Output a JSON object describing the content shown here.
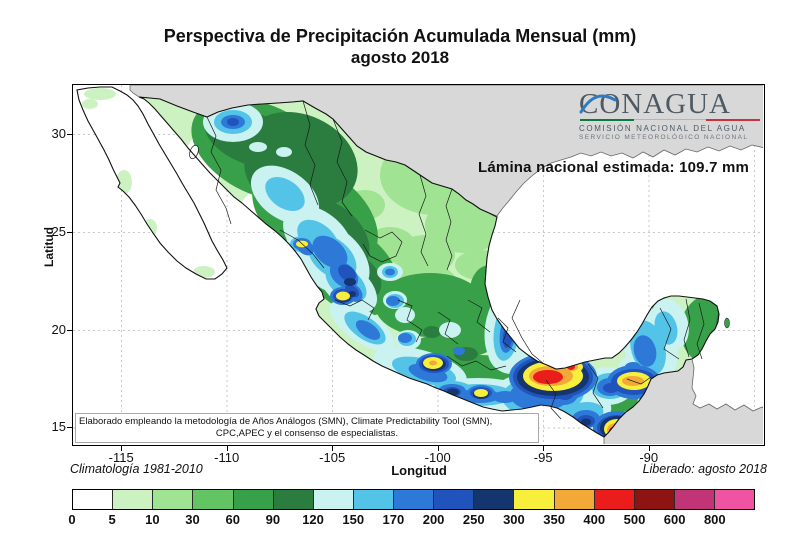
{
  "title": {
    "line1": "Perspectiva de Precipitación Acumulada Mensual (mm)",
    "line2": "agosto 2018"
  },
  "logo": {
    "name": "CONAGUA",
    "sub1": "COMISIÓN NACIONAL DEL AGUA",
    "sub2": "SERVICIO METEOROLÓGICO NACIONAL",
    "bar_colors": [
      "#0b7a40",
      "#b0b6ba",
      "#c8323c"
    ],
    "swoosh_color": "#2e7bc4"
  },
  "map": {
    "annotation": "Lámina nacional estimada: 109.7 mm",
    "methodology_line1": "Elaborado empleando la metodología de Años Análogos (SMN), Climate Predictability Tool (SMN),",
    "methodology_line2": "CPC,APEC y el consenso de especialistas."
  },
  "axes": {
    "x_label": "Longitud",
    "y_label": "Latitud",
    "x_ticks": [
      -115,
      -110,
      -105,
      -100,
      -95,
      -90
    ],
    "y_ticks": [
      30,
      25,
      20,
      15
    ]
  },
  "footer": {
    "left": "Climatología 1981-2010",
    "right": "Liberado: agosto 2018"
  },
  "colorbar": {
    "values": [
      0,
      5,
      10,
      30,
      60,
      90,
      120,
      150,
      170,
      200,
      250,
      300,
      350,
      400,
      500,
      600,
      800
    ],
    "colors": [
      "#ffffff",
      "#ccf2c2",
      "#a0e392",
      "#62c462",
      "#38a048",
      "#2a7d3f",
      "#c9f2f0",
      "#53c3e8",
      "#2e78d8",
      "#2153bd",
      "#15356e",
      "#f7ef3c",
      "#f2a937",
      "#ea1c1c",
      "#8e1414",
      "#c13577",
      "#ef53a2"
    ]
  },
  "chart_data": {
    "type": "heatmap",
    "subtype": "filled-contour precipitation map of Mexico",
    "units": "mm",
    "title": "Perspectiva de Precipitación Acumulada Mensual (mm) — agosto 2018",
    "xlabel": "Longitud",
    "ylabel": "Latitud",
    "xlim": [
      -117.3,
      -84.5
    ],
    "ylim": [
      14.1,
      32.6
    ],
    "x_ticks": [
      -115,
      -110,
      -105,
      -100,
      -95,
      -90
    ],
    "y_ticks": [
      15,
      20,
      25,
      30
    ],
    "grid": "dotted, every 5 degrees",
    "national_mean_mm": 109.7,
    "scale_breakpoints_mm": [
      0,
      5,
      10,
      30,
      60,
      90,
      120,
      150,
      170,
      200,
      250,
      300,
      350,
      400,
      500,
      600,
      800
    ],
    "scale_colors": [
      "#ffffff",
      "#ccf2c2",
      "#a0e392",
      "#62c462",
      "#38a048",
      "#2a7d3f",
      "#c9f2f0",
      "#53c3e8",
      "#2e78d8",
      "#2153bd",
      "#15356e",
      "#f7ef3c",
      "#f2a937",
      "#ea1c1c",
      "#8e1414",
      "#c13577",
      "#ef53a2"
    ],
    "masked_regions": [
      "United States (gray)",
      "Guatemala and Belize (gray)"
    ],
    "notable_features": [
      {
        "area": "Baja California peninsula",
        "estimate_mm": "0-10"
      },
      {
        "area": "Northern Sonora local maximum",
        "estimate_mm": "170-250"
      },
      {
        "area": "Sierra Madre Occidental (Sonora-Chihuahua-Durango)",
        "estimate_mm": "90-250"
      },
      {
        "area": "Sinaloa-Nayarit coastal spots",
        "estimate_mm": "300-350"
      },
      {
        "area": "Northeast (Coahuila-Nuevo León-Tamaulipas)",
        "estimate_mm": "10-60"
      },
      {
        "area": "Central plateau (Bajío)",
        "estimate_mm": "30-90"
      },
      {
        "area": "Guerrero-Oaxaca Pacific coast",
        "estimate_mm": "150-300 with 300-350 spots"
      },
      {
        "area": "Southern Veracruz (Los Tuxtlas) core",
        "estimate_mm": "400-500"
      },
      {
        "area": "Tabasco-Chiapas border",
        "estimate_mm": "350-400"
      },
      {
        "area": "Coastal Chiapas",
        "estimate_mm": "400-600"
      },
      {
        "area": "Campeche band",
        "estimate_mm": "120-200"
      },
      {
        "area": "Eastern Yucatán Peninsula",
        "estimate_mm": "90-120"
      }
    ]
  }
}
